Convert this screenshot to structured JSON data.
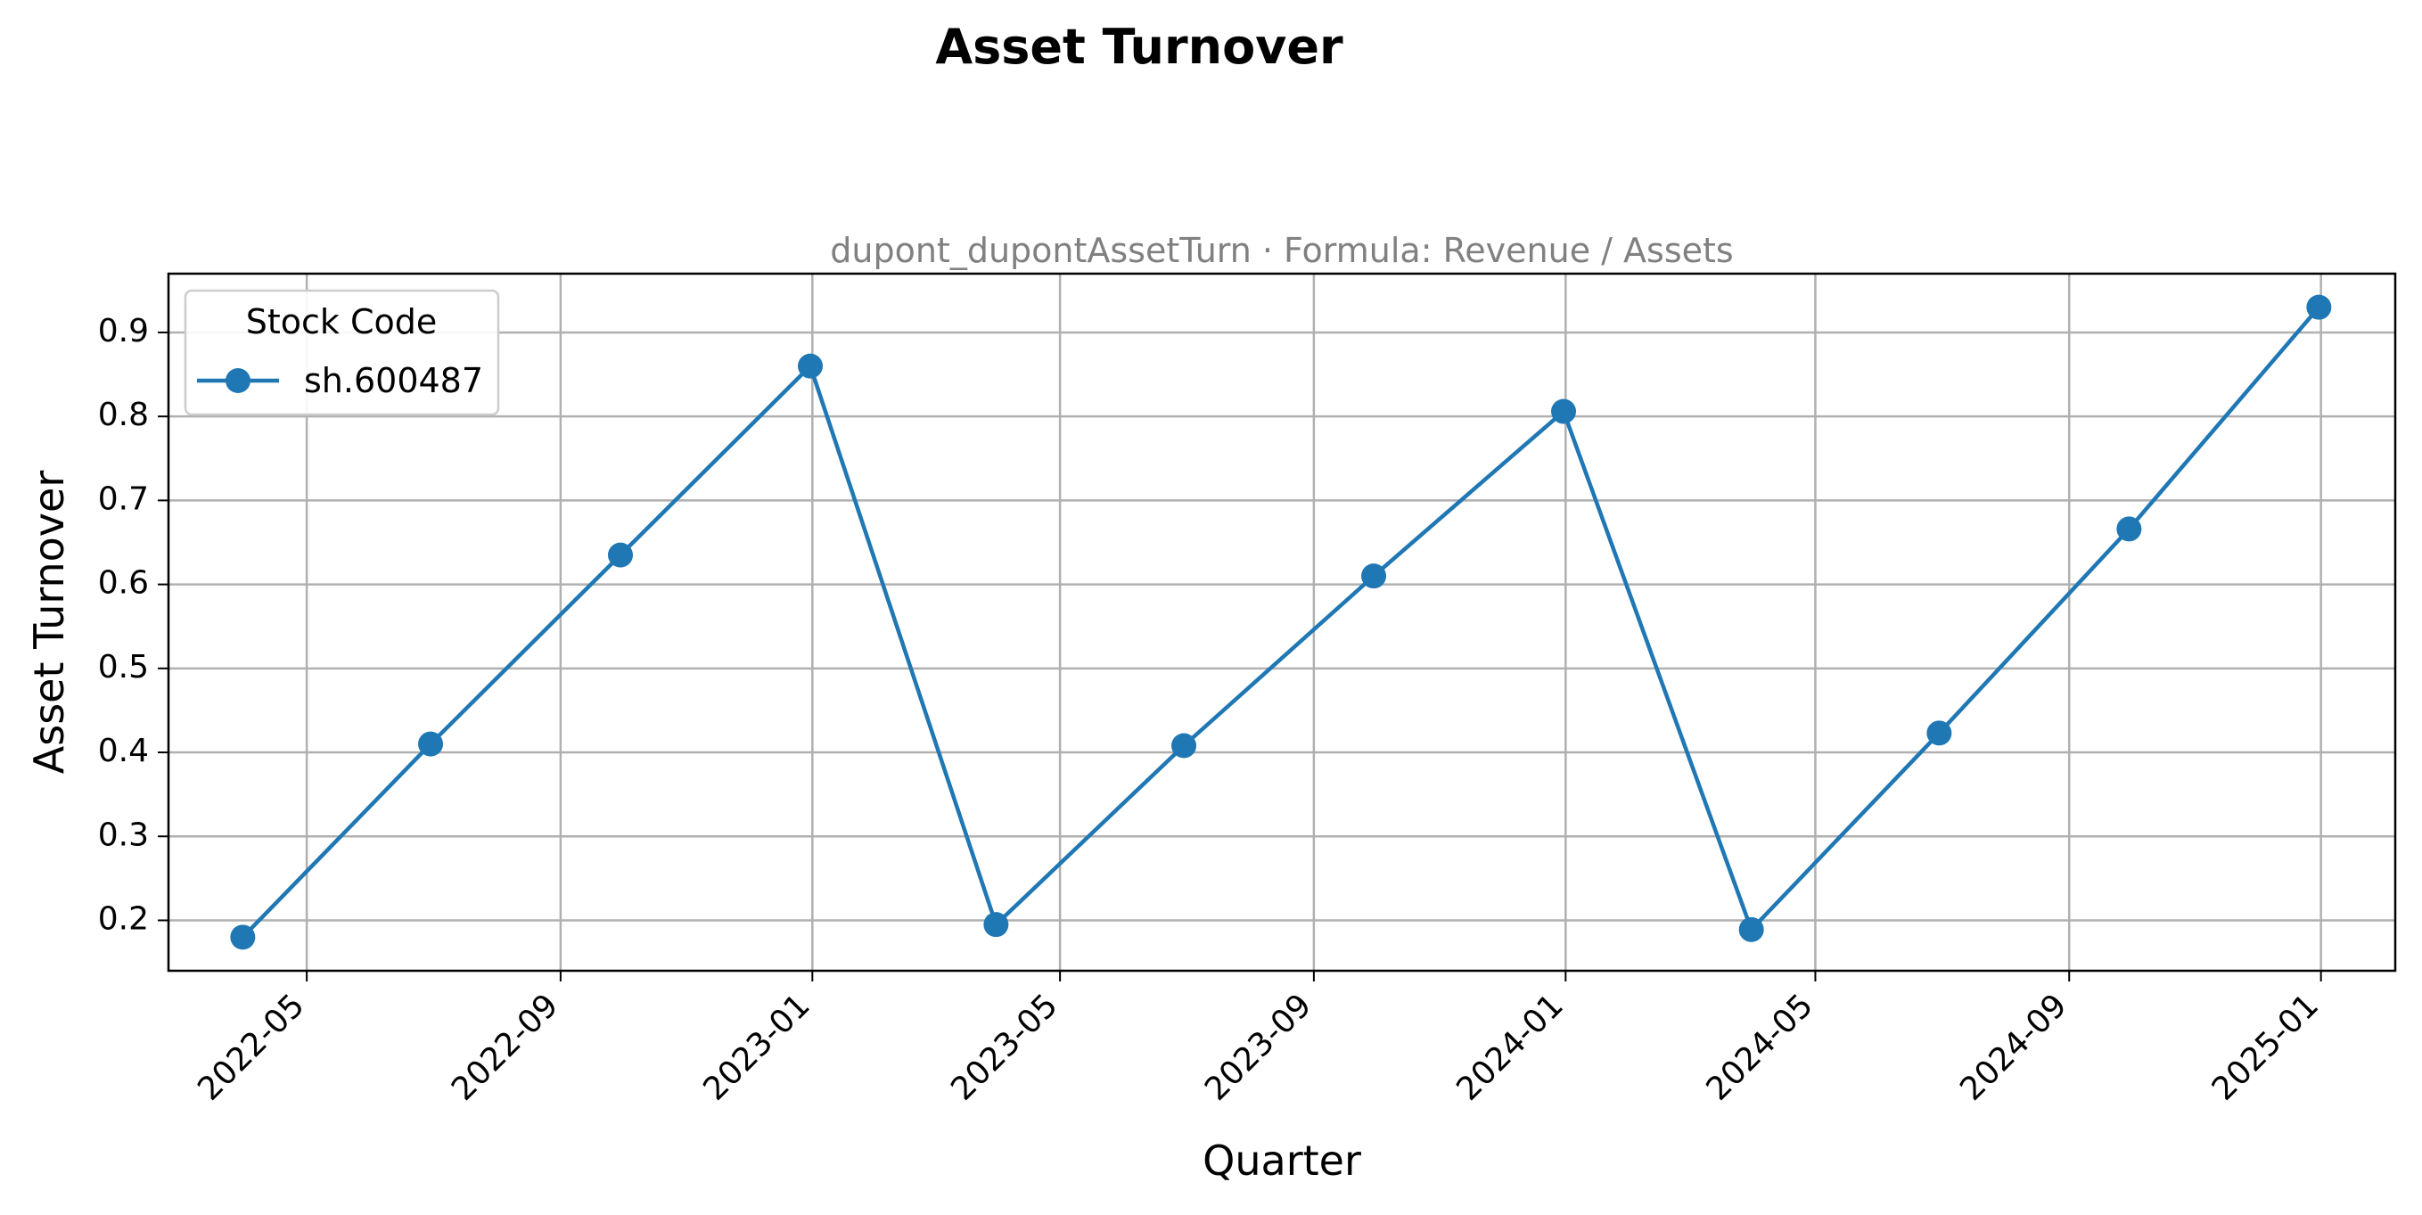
{
  "figure": {
    "suptitle": "Asset Turnover"
  },
  "chart_data": {
    "type": "line",
    "title": "dupont_dupontAssetTurn · Formula: Revenue / Assets",
    "xlabel": "Quarter",
    "ylabel": "Asset Turnover",
    "x_axis_type": "date",
    "xlim": [
      "2022-02-23",
      "2025-02-06"
    ],
    "ylim": [
      0.14,
      0.97
    ],
    "grid": true,
    "x_ticks": [
      "2022-05-01",
      "2022-09-01",
      "2023-01-01",
      "2023-05-01",
      "2023-09-01",
      "2024-01-01",
      "2024-05-01",
      "2024-09-01",
      "2025-01-01"
    ],
    "x_tick_labels": [
      "2022-05",
      "2022-09",
      "2023-01",
      "2023-05",
      "2023-09",
      "2024-01",
      "2024-05",
      "2024-09",
      "2025-01"
    ],
    "y_ticks": [
      0.2,
      0.3,
      0.4,
      0.5,
      0.6,
      0.7,
      0.8,
      0.9
    ],
    "y_tick_labels": [
      "0.2",
      "0.3",
      "0.4",
      "0.5",
      "0.6",
      "0.7",
      "0.8",
      "0.9"
    ],
    "legend": {
      "title": "Stock Code",
      "placement": "top-left"
    },
    "series": [
      {
        "name": "sh.600487",
        "color": "#1f77b4",
        "marker": "circle",
        "x": [
          "2022-03-31",
          "2022-06-30",
          "2022-09-30",
          "2022-12-31",
          "2023-03-31",
          "2023-06-30",
          "2023-09-30",
          "2023-12-31",
          "2024-03-31",
          "2024-06-30",
          "2024-09-30",
          "2024-12-31"
        ],
        "values": [
          0.18,
          0.41,
          0.635,
          0.86,
          0.195,
          0.408,
          0.61,
          0.806,
          0.189,
          0.423,
          0.666,
          0.93
        ]
      }
    ]
  }
}
